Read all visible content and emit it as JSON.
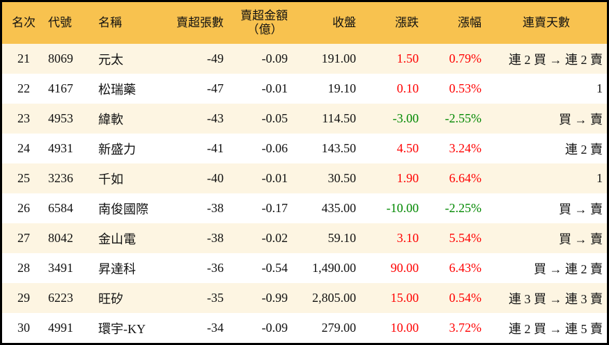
{
  "colors": {
    "header_bg": "#f8c24f",
    "row_alt_bg": "#fdf5e2",
    "up": "#ff0000",
    "down": "#008800"
  },
  "headers": [
    "名次",
    "代號",
    "名稱",
    "賣超張數",
    "賣超金額",
    "（億）",
    "收盤",
    "漲跌",
    "漲幅",
    "連賣天數"
  ],
  "rows": [
    {
      "rank": "21",
      "code": "8069",
      "name": "元太",
      "shares": "-49",
      "amount": "-0.09",
      "close": "191.00",
      "change": "1.50",
      "pct": "0.79%",
      "dir": "up",
      "streak": "連 2 買 → 連 2 賣"
    },
    {
      "rank": "22",
      "code": "4167",
      "name": "松瑞藥",
      "shares": "-47",
      "amount": "-0.01",
      "close": "19.10",
      "change": "0.10",
      "pct": "0.53%",
      "dir": "up",
      "streak": "1"
    },
    {
      "rank": "23",
      "code": "4953",
      "name": "緯軟",
      "shares": "-43",
      "amount": "-0.05",
      "close": "114.50",
      "change": "-3.00",
      "pct": "-2.55%",
      "dir": "down",
      "streak": "買 → 賣"
    },
    {
      "rank": "24",
      "code": "4931",
      "name": "新盛力",
      "shares": "-41",
      "amount": "-0.06",
      "close": "143.50",
      "change": "4.50",
      "pct": "3.24%",
      "dir": "up",
      "streak": "連 2 賣"
    },
    {
      "rank": "25",
      "code": "3236",
      "name": "千如",
      "shares": "-40",
      "amount": "-0.01",
      "close": "30.50",
      "change": "1.90",
      "pct": "6.64%",
      "dir": "up",
      "streak": "1"
    },
    {
      "rank": "26",
      "code": "6584",
      "name": "南俊國際",
      "shares": "-38",
      "amount": "-0.17",
      "close": "435.00",
      "change": "-10.00",
      "pct": "-2.25%",
      "dir": "down",
      "streak": "買 → 賣"
    },
    {
      "rank": "27",
      "code": "8042",
      "name": "金山電",
      "shares": "-38",
      "amount": "-0.02",
      "close": "59.10",
      "change": "3.10",
      "pct": "5.54%",
      "dir": "up",
      "streak": "買 → 賣"
    },
    {
      "rank": "28",
      "code": "3491",
      "name": "昇達科",
      "shares": "-36",
      "amount": "-0.54",
      "close": "1,490.00",
      "change": "90.00",
      "pct": "6.43%",
      "dir": "up",
      "streak": "買 → 連 2 賣"
    },
    {
      "rank": "29",
      "code": "6223",
      "name": "旺矽",
      "shares": "-35",
      "amount": "-0.99",
      "close": "2,805.00",
      "change": "15.00",
      "pct": "0.54%",
      "dir": "up",
      "streak": "連 3 買 → 連 3 賣"
    },
    {
      "rank": "30",
      "code": "4991",
      "name": "環宇-KY",
      "shares": "-34",
      "amount": "-0.09",
      "close": "279.00",
      "change": "10.00",
      "pct": "3.72%",
      "dir": "up",
      "streak": "連 2 買 → 連 5 賣"
    }
  ]
}
